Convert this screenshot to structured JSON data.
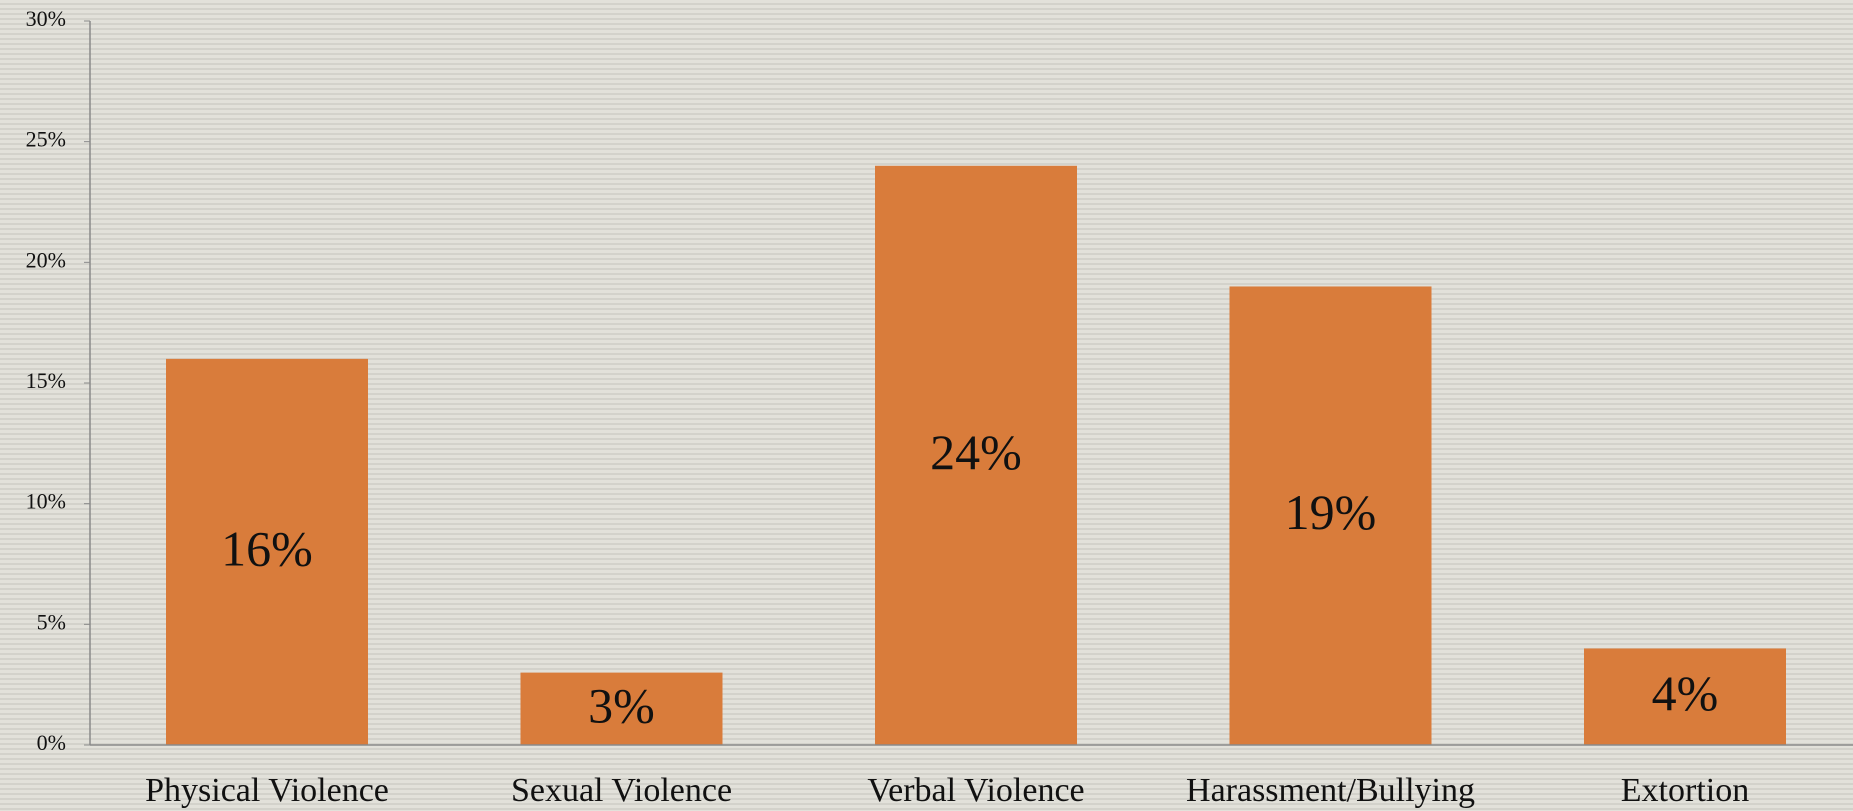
{
  "chart_data": {
    "type": "bar",
    "categories": [
      "Physical Violence",
      "Sexual Violence",
      "Verbal Violence",
      "Harassment/Bullying",
      "Extortion"
    ],
    "values": [
      16,
      3,
      24,
      19,
      4
    ],
    "value_labels": [
      "16%",
      "3%",
      "24%",
      "19%",
      "4%"
    ],
    "color": "#d97c3b",
    "ylim": [
      0,
      30
    ],
    "yticks": [
      {
        "value": 0,
        "label": "0%"
      },
      {
        "value": 5,
        "label": "5%"
      },
      {
        "value": 10,
        "label": "10%"
      },
      {
        "value": 15,
        "label": "15%"
      },
      {
        "value": 20,
        "label": "20%"
      },
      {
        "value": 25,
        "label": "25%"
      },
      {
        "value": 30,
        "label": "30%"
      }
    ],
    "grid": false
  }
}
